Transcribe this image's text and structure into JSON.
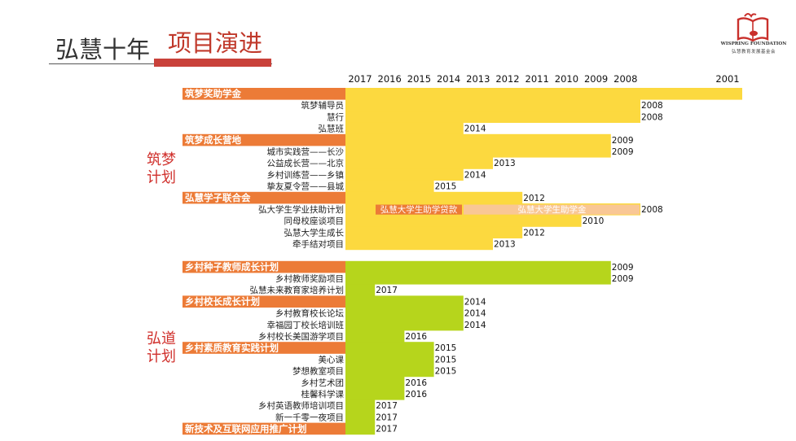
{
  "header": {
    "title": "弘慧十年",
    "subtitle": "项目演进"
  },
  "logo": {
    "text_en": "WISPRING FOUNDATION",
    "text_cn": "弘慧教育发展基金会",
    "icon": "book-heart-logo-icon"
  },
  "plans": [
    {
      "name": "筑梦\n计划",
      "color": "#fcd93f"
    },
    {
      "name": "弘道\n计划",
      "color": "#b6d51c"
    }
  ],
  "colors": {
    "category_bg": "#ec7b37",
    "category_text": "#ffffff",
    "label_text": "#222222",
    "zhumeng_bar": "#fcd93f",
    "hongdao_bar": "#b6d51c",
    "loan_bar": "#ec7b37",
    "grant_bar": "#f9c795"
  },
  "chart_data": {
    "type": "bar",
    "orientation": "horizontal",
    "x_axis_years": [
      "2017",
      "2016",
      "2015",
      "2014",
      "2013",
      "2012",
      "2011",
      "2010",
      "2009",
      "2008",
      "2001"
    ],
    "rows": [
      {
        "name": "筑梦奖助学金",
        "category": true,
        "start": 2001,
        "label": "2001",
        "plan": 0
      },
      {
        "name": "筑梦辅导员",
        "category": false,
        "start": 2008,
        "label": "2008",
        "plan": 0
      },
      {
        "name": "慧行",
        "category": false,
        "start": 2008,
        "label": "2008",
        "plan": 0
      },
      {
        "name": "弘慧班",
        "category": false,
        "start": 2014,
        "label": "2014",
        "plan": 0
      },
      {
        "name": "筑梦成长营地",
        "category": true,
        "start": 2009,
        "label": "2009",
        "plan": 0
      },
      {
        "name": "城市实践营——长沙",
        "category": false,
        "start": 2009,
        "label": "2009",
        "plan": 0
      },
      {
        "name": "公益成长营——北京",
        "category": false,
        "start": 2013,
        "label": "2013",
        "plan": 0
      },
      {
        "name": "乡村训练营——乡镇",
        "category": false,
        "start": 2014,
        "label": "2014",
        "plan": 0
      },
      {
        "name": "挚友夏令营——县城",
        "category": false,
        "start": 2015,
        "label": "2015",
        "plan": 0
      },
      {
        "name": "弘慧学子联合会",
        "category": true,
        "start": 2012,
        "label": "2012",
        "plan": 0
      },
      {
        "name": "弘大学生学业扶助计划",
        "category": false,
        "start": 2008,
        "label": "2008",
        "plan": 0,
        "segments": [
          {
            "name": "弘慧大学生助学贷款",
            "from": 2017,
            "to": 2014,
            "color": "loan_bar"
          },
          {
            "name": "弘慧大学生助学金",
            "from": 2014,
            "to": 2008,
            "color": "grant_bar"
          }
        ]
      },
      {
        "name": "同母校座谈项目",
        "category": false,
        "start": 2010,
        "label": "2010",
        "plan": 0
      },
      {
        "name": "弘慧大学生成长",
        "category": false,
        "start": 2012,
        "label": "2012",
        "plan": 0
      },
      {
        "name": "牵手结对项目",
        "category": false,
        "start": 2013,
        "label": "2013",
        "plan": 0
      },
      {
        "name": "乡村种子教师成长计划",
        "category": true,
        "start": 2009,
        "label": "2009",
        "plan": 1
      },
      {
        "name": "乡村教师奖励项目",
        "category": false,
        "start": 2009,
        "label": "2009",
        "plan": 1
      },
      {
        "name": "弘慧未来教育家培养计划",
        "category": false,
        "start": 2017,
        "label": "2017",
        "plan": 1
      },
      {
        "name": "乡村校长成长计划",
        "category": true,
        "start": 2014,
        "label": "2014",
        "plan": 1
      },
      {
        "name": "乡村教育校长论坛",
        "category": false,
        "start": 2014,
        "label": "2014",
        "plan": 1
      },
      {
        "name": "幸福园丁校长培训班",
        "category": false,
        "start": 2014,
        "label": "2014",
        "plan": 1
      },
      {
        "name": "乡村校长美国游学项目",
        "category": false,
        "start": 2016,
        "label": "2016",
        "plan": 1
      },
      {
        "name": "乡村素质教育实践计划",
        "category": true,
        "start": 2015,
        "label": "2015",
        "plan": 1
      },
      {
        "name": "美心课",
        "category": false,
        "start": 2015,
        "label": "2015",
        "plan": 1
      },
      {
        "name": "梦想教室项目",
        "category": false,
        "start": 2015,
        "label": "2015",
        "plan": 1
      },
      {
        "name": "乡村艺术团",
        "category": false,
        "start": 2016,
        "label": "2016",
        "plan": 1
      },
      {
        "name": "桂馨科学课",
        "category": false,
        "start": 2016,
        "label": "2016",
        "plan": 1
      },
      {
        "name": "乡村英语教师培训项目",
        "category": false,
        "start": 2017,
        "label": "2017",
        "plan": 1
      },
      {
        "name": "新一千零一夜项目",
        "category": false,
        "start": 2017,
        "label": "2017",
        "plan": 1
      },
      {
        "name": "新技术及互联网应用推广计划",
        "category": true,
        "start": 2017,
        "label": "2017",
        "plan": 1
      }
    ]
  }
}
